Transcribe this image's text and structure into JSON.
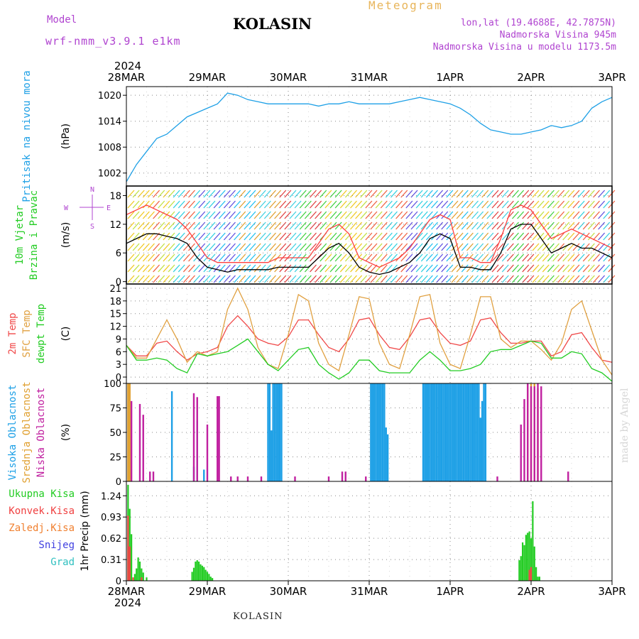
{
  "header": {
    "model_label": "Model",
    "model_name": "wrf-nmm_v3.9.1 e1km",
    "station": "KOLASIN",
    "meteogram_label": "Meteogram",
    "lonlat": "lon,lat (19.4688E, 42.7875N)",
    "elevation": "Nadmorska Visina 945m",
    "model_elevation": "Nadmorska Visina u modelu 1173.5m"
  },
  "footer": {
    "station": "KOLASIN",
    "credit": "made by Angel"
  },
  "colors": {
    "pressure": "#1ea0e6",
    "wind_label": "#22cc22",
    "wind_speed": "#000000",
    "wind_gust": "#ff4040",
    "temp2m": "#f04848",
    "sfc_temp": "#e0a040",
    "dewpoint": "#22cc22",
    "cloud_high": "#1ea0e6",
    "cloud_mid": "#e0a030",
    "cloud_low": "#c020a0",
    "precip_total": "#22cc22",
    "precip_conv": "#f04040",
    "precip_frozen": "#f08030",
    "snow": "#4040e0",
    "graupel": "#30c0c0",
    "compass": "#b044d0"
  },
  "chart_data": {
    "type": "line",
    "time": {
      "year": "2024",
      "days": [
        "28MAR",
        "29MAR",
        "30MAR",
        "31MAR",
        "1APR",
        "2APR",
        "3APR"
      ],
      "x_unit": "hours since 2024-03-28 00:00",
      "x_range": [
        0,
        144
      ],
      "step_hours": 3
    },
    "panels": [
      {
        "id": "pressure",
        "type": "line",
        "labels": [
          "Pritisak na nivou mora"
        ],
        "unit": "(hPa)",
        "ylim": [
          999,
          1022
        ],
        "yticks": [
          1002,
          1008,
          1014,
          1020
        ],
        "series": [
          {
            "name": "Pritisak na nivou mora",
            "values": [
              1000,
              1004,
              1007,
              1010,
              1011,
              1013,
              1015,
              1016,
              1017,
              1018,
              1020.5,
              1020,
              1019,
              1018.5,
              1018,
              1018,
              1018,
              1018,
              1018,
              1017.5,
              1018,
              1018,
              1018.5,
              1018,
              1018,
              1018,
              1018,
              1018.5,
              1019,
              1019.5,
              1019,
              1018.5,
              1018,
              1017,
              1015.5,
              1013.5,
              1012,
              1011.5,
              1011,
              1011,
              1011.5,
              1012,
              1013,
              1012.5,
              1013,
              1014,
              1017,
              1018.5,
              1019.5
            ]
          }
        ]
      },
      {
        "id": "wind",
        "type": "line",
        "labels": [
          "10m Vjetar",
          "Brzina i Pravac"
        ],
        "unit": "(m/s)",
        "ylim": [
          -0.5,
          20
        ],
        "yticks": [
          0,
          6,
          12,
          18
        ],
        "compass": {
          "n": "N",
          "s": "S",
          "e": "E",
          "w": "W"
        },
        "series": [
          {
            "name": "speed",
            "values": [
              8,
              9,
              10,
              10,
              9.5,
              9,
              8,
              5,
              3,
              2.5,
              2,
              2.5,
              2.5,
              2.5,
              2.5,
              3,
              3,
              3,
              3,
              5,
              7,
              8,
              6,
              3,
              2,
              1.5,
              2,
              3,
              4,
              6,
              9,
              10,
              9,
              3,
              3,
              2.5,
              2.5,
              6,
              11,
              12,
              12,
              9,
              6,
              7,
              8,
              7,
              7,
              6,
              5
            ]
          },
          {
            "name": "gust",
            "values": [
              14,
              15,
              16,
              15,
              14,
              13,
              11,
              8,
              5,
              4,
              4,
              4,
              4,
              4,
              4,
              5,
              5,
              5,
              5,
              8,
              11,
              12,
              10,
              5,
              4,
              3,
              4,
              5,
              7,
              10,
              13,
              14,
              13,
              5,
              5,
              4,
              4,
              9,
              15,
              16,
              15,
              12,
              9,
              10,
              11,
              10,
              9,
              8,
              7
            ]
          }
        ]
      },
      {
        "id": "temperature",
        "type": "line",
        "labels": [
          "2m Temp",
          "SFC Temp",
          "dewpt Temp"
        ],
        "unit": "(C)",
        "ylim": [
          -1.5,
          22
        ],
        "yticks": [
          0,
          3,
          6,
          9,
          12,
          15,
          18,
          21
        ],
        "series": [
          {
            "name": "2m Temp",
            "values": [
              7.5,
              5,
              5,
              8,
              8.5,
              6,
              4,
              5.5,
              6,
              7,
              12,
              14.5,
              12,
              9,
              8,
              7.5,
              9.5,
              13.5,
              13.5,
              10,
              7,
              6,
              9,
              13.5,
              14,
              10,
              7,
              6.5,
              9.5,
              13.5,
              14,
              10.5,
              8,
              7.5,
              8.5,
              13.5,
              14,
              10.5,
              8,
              8,
              8.5,
              8.5,
              5,
              6,
              10,
              10.5,
              7,
              4,
              3.5
            ]
          },
          {
            "name": "SFC Temp",
            "values": [
              7.5,
              4.5,
              4.5,
              9,
              13.5,
              9,
              3.5,
              6,
              5,
              6,
              16,
              21,
              16,
              7,
              3,
              2,
              10,
              19.5,
              18,
              8,
              3,
              1.5,
              10,
              19,
              18.5,
              8,
              3,
              2,
              10,
              19,
              19.5,
              8,
              3,
              2,
              10,
              19,
              19,
              9,
              7,
              8.5,
              8.5,
              6.5,
              4,
              8,
              16,
              18,
              11,
              4,
              0.5
            ]
          },
          {
            "name": "dewpt Temp",
            "values": [
              7.5,
              4,
              4,
              4.5,
              4,
              2,
              1,
              5.5,
              5,
              5.5,
              6,
              7.5,
              9,
              6,
              3,
              1.5,
              4,
              6.5,
              7,
              3,
              1,
              -0.5,
              1,
              4,
              4,
              1.5,
              1,
              1,
              1,
              4,
              6,
              4,
              1.5,
              1.5,
              2,
              3,
              6,
              6.5,
              6.5,
              7.5,
              8.5,
              8,
              4.5,
              4.5,
              6,
              5.5,
              2,
              1,
              -1
            ]
          }
        ]
      },
      {
        "id": "clouds",
        "type": "bar",
        "labels": [
          "Visoka Oblacnost",
          "Srednja Oblacnost",
          "Niska Oblacnost"
        ],
        "unit": "(%)",
        "ylim": [
          0,
          100
        ],
        "yticks": [
          0,
          25,
          50,
          75,
          100
        ],
        "series": [
          {
            "name": "Visoka Oblacnost",
            "bars": [
              [
                13.5,
                92
              ],
              [
                20,
                15
              ],
              [
                21,
                62
              ],
              [
                23,
                12
              ],
              [
                42,
                100
              ],
              [
                42.5,
                100
              ],
              [
                43,
                52
              ],
              [
                43.5,
                100
              ],
              [
                44,
                100
              ],
              [
                44.5,
                100
              ],
              [
                45,
                100
              ],
              [
                45.5,
                100
              ],
              [
                46,
                100
              ],
              [
                72.5,
                100
              ],
              [
                73,
                100
              ],
              [
                73.5,
                100
              ],
              [
                74,
                100
              ],
              [
                74.5,
                100
              ],
              [
                75,
                100
              ],
              [
                75.5,
                100
              ],
              [
                76,
                100
              ],
              [
                76.5,
                100
              ],
              [
                77,
                55
              ],
              [
                77.5,
                48
              ],
              [
                88,
                100
              ],
              [
                88.5,
                100
              ],
              [
                89,
                100
              ],
              [
                89.5,
                100
              ],
              [
                90,
                100
              ],
              [
                90.5,
                100
              ],
              [
                91,
                100
              ],
              [
                91.5,
                100
              ],
              [
                92,
                100
              ],
              [
                92.5,
                100
              ],
              [
                93,
                100
              ],
              [
                93.5,
                100
              ],
              [
                94,
                100
              ],
              [
                94.5,
                100
              ],
              [
                95,
                100
              ],
              [
                95.5,
                100
              ],
              [
                96,
                100
              ],
              [
                96.5,
                100
              ],
              [
                97,
                100
              ],
              [
                97.5,
                100
              ],
              [
                98,
                100
              ],
              [
                98.5,
                100
              ],
              [
                99,
                100
              ],
              [
                99.5,
                100
              ],
              [
                100,
                100
              ],
              [
                100.5,
                100
              ],
              [
                101,
                100
              ],
              [
                101.5,
                100
              ],
              [
                102,
                100
              ],
              [
                102.5,
                100
              ],
              [
                103,
                100
              ],
              [
                103.5,
                100
              ],
              [
                104,
                100
              ],
              [
                104.5,
                100
              ],
              [
                105,
                65
              ],
              [
                105.5,
                82
              ],
              [
                106,
                100
              ],
              [
                106.5,
                100
              ]
            ]
          },
          {
            "name": "Srednja Oblacnost",
            "bars": [
              [
                0.5,
                100
              ],
              [
                1,
                100
              ],
              [
                119,
                100
              ],
              [
                120,
                100
              ],
              [
                121,
                100
              ],
              [
                122,
                95
              ]
            ]
          },
          {
            "name": "Niska Oblacnost",
            "bars": [
              [
                1.5,
                82
              ],
              [
                4,
                79
              ],
              [
                5,
                68
              ],
              [
                7,
                10
              ],
              [
                8,
                10
              ],
              [
                20,
                90
              ],
              [
                21,
                86
              ],
              [
                24,
                58
              ],
              [
                27,
                87
              ],
              [
                27.5,
                87
              ],
              [
                31,
                5
              ],
              [
                33,
                5
              ],
              [
                36,
                5
              ],
              [
                40,
                5
              ],
              [
                50,
                5
              ],
              [
                60,
                5
              ],
              [
                64,
                10
              ],
              [
                65,
                10
              ],
              [
                71,
                5
              ],
              [
                110,
                5
              ],
              [
                117,
                58
              ],
              [
                118,
                84
              ],
              [
                119,
                100
              ],
              [
                120,
                97
              ],
              [
                121,
                97
              ],
              [
                122,
                100
              ],
              [
                123,
                97
              ],
              [
                131,
                10
              ]
            ]
          }
        ]
      },
      {
        "id": "precip",
        "type": "bar",
        "labels": [
          "Ukupna Kisa",
          "Konvek.Kisa",
          "Zaledj.Kisa",
          "Snijeg",
          "Grad"
        ],
        "unit": "1hr Precip (mm)",
        "ylim": [
          0,
          1.45
        ],
        "yticks": [
          0,
          0.31,
          0.62,
          0.93,
          1.24
        ],
        "series": [
          {
            "name": "Ukupna Kisa",
            "bars": [
              [
                0.5,
                1.4
              ],
              [
                1,
                1.05
              ],
              [
                1.5,
                0.68
              ],
              [
                2.5,
                0.1
              ],
              [
                3,
                0.18
              ],
              [
                3.5,
                0.34
              ],
              [
                4,
                0.28
              ],
              [
                4.5,
                0.18
              ],
              [
                5,
                0.12
              ],
              [
                6,
                0.05
              ],
              [
                19.5,
                0.13
              ],
              [
                20,
                0.19
              ],
              [
                20.5,
                0.28
              ],
              [
                21,
                0.3
              ],
              [
                21.5,
                0.28
              ],
              [
                22,
                0.24
              ],
              [
                22.5,
                0.22
              ],
              [
                23,
                0.2
              ],
              [
                23.5,
                0.16
              ],
              [
                24,
                0.13
              ],
              [
                24.5,
                0.1
              ],
              [
                25,
                0.06
              ],
              [
                25.5,
                0.04
              ],
              [
                116.5,
                0.3
              ],
              [
                117,
                0.36
              ],
              [
                117.5,
                0.56
              ],
              [
                118,
                0.52
              ],
              [
                118.5,
                0.67
              ],
              [
                119,
                0.7
              ],
              [
                119.5,
                0.72
              ],
              [
                120,
                0.62
              ],
              [
                120.5,
                1.16
              ],
              [
                121,
                0.5
              ],
              [
                121.5,
                0.2
              ],
              [
                122,
                0.06
              ],
              [
                122.5,
                0.06
              ]
            ]
          },
          {
            "name": "Konvek.Kisa",
            "bars": [
              [
                0.5,
                0.95
              ],
              [
                1,
                0.5
              ],
              [
                2,
                0.05
              ],
              [
                4.5,
                0.05
              ],
              [
                119.5,
                0.16
              ],
              [
                120,
                0.2
              ]
            ]
          }
        ]
      }
    ]
  }
}
